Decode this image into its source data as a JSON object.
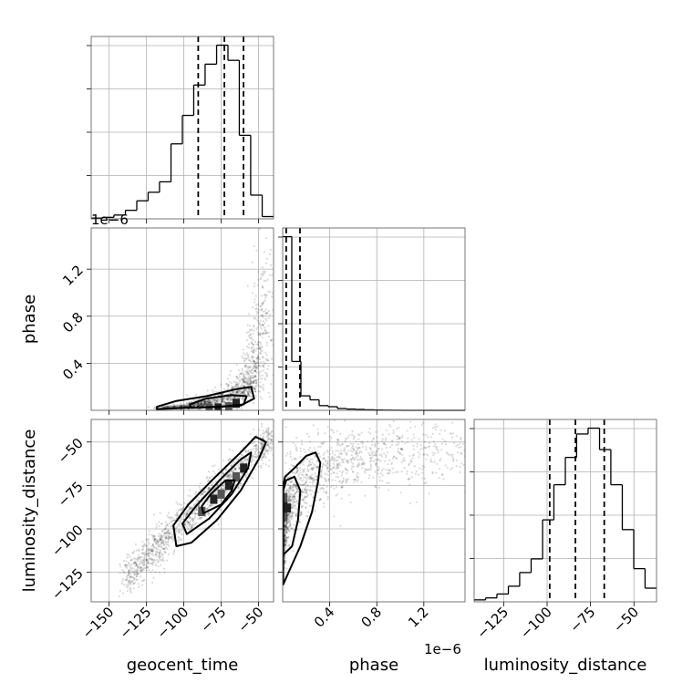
{
  "chart_data": {
    "type": "corner",
    "parameters": [
      "geocent_time",
      "phase",
      "luminosity_distance"
    ],
    "grid": true,
    "axes": {
      "geocent_time": {
        "label": "geocent_time",
        "lim": [
          -162,
          -40
        ],
        "ticks": [
          -150,
          -125,
          -100,
          -75,
          -50
        ],
        "tick_labels": [
          "−150",
          "−125",
          "−100",
          "−75",
          "−50"
        ]
      },
      "phase": {
        "label": "phase",
        "lim": [
          0,
          1.55
        ],
        "ticks": [
          0.4,
          0.8,
          1.2
        ],
        "tick_labels": [
          "0.4",
          "0.8",
          "1.2"
        ],
        "offset_label": "1e−6"
      },
      "luminosity_distance": {
        "label": "luminosity_distance",
        "lim": [
          -142,
          -37
        ],
        "ticks": [
          -125,
          -100,
          -75,
          -50
        ],
        "tick_labels": [
          "−125",
          "−100",
          "−75",
          "−50"
        ]
      }
    },
    "marginals": [
      {
        "parameter": "geocent_time",
        "bin_edges": [
          -162,
          -154.4,
          -146.8,
          -139.1,
          -131.5,
          -123.9,
          -116.3,
          -108.6,
          -101,
          -93.4,
          -85.8,
          -78.1,
          -70.5,
          -62.9,
          -55.3,
          -47.6,
          -40
        ],
        "counts": [
          0.004,
          0.008,
          0.02,
          0.045,
          0.095,
          0.14,
          0.195,
          0.395,
          0.545,
          0.705,
          0.815,
          0.915,
          0.835,
          0.44,
          0.125,
          0.012
        ],
        "quantiles": [
          -90.4,
          -72.9,
          -60.1
        ]
      },
      {
        "parameter": "phase",
        "bin_edges": [
          0,
          0.0775,
          0.155,
          0.2325,
          0.31,
          0.3875,
          0.465,
          0.5425,
          0.62,
          0.6975,
          0.775,
          0.8525,
          0.93,
          1.0075,
          1.085,
          1.1625,
          1.24,
          1.3175,
          1.395,
          1.4725,
          1.55
        ],
        "counts": [
          0.96,
          0.27,
          0.08,
          0.058,
          0.026,
          0.02,
          0.01,
          0.007,
          0.005,
          0.003,
          0.002,
          0.001,
          0.0005,
          0,
          0,
          0,
          0,
          0,
          0,
          0
        ],
        "quantiles": [
          0.03,
          0.147
        ]
      },
      {
        "parameter": "luminosity_distance",
        "bin_edges": [
          -142,
          -135.4,
          -128.9,
          -122.3,
          -115.8,
          -109.2,
          -102.6,
          -96.1,
          -89.5,
          -83,
          -76.4,
          -69.8,
          -63.3,
          -56.7,
          -50.1,
          -43.6,
          -37
        ],
        "counts": [
          0.01,
          0.02,
          0.04,
          0.08,
          0.15,
          0.22,
          0.42,
          0.6,
          0.74,
          0.86,
          0.89,
          0.78,
          0.6,
          0.37,
          0.17,
          0.07
        ],
        "quantiles": [
          -98.5,
          -83.7,
          -67.1
        ]
      }
    ],
    "joint": [
      {
        "x": "geocent_time",
        "y": "phase",
        "ridge_x": [
          -115,
          -100,
          -90,
          -80,
          -70,
          -60,
          -55,
          -50,
          -45
        ],
        "ridge_y": [
          0.02,
          0.03,
          0.05,
          0.08,
          0.12,
          0.18,
          0.3,
          0.55,
          1.0
        ],
        "spread_x": 4,
        "spread_y_rel": 0.35,
        "contours": [
          [
            [
              -118,
              0.01
            ],
            [
              -100,
              0.02
            ],
            [
              -80,
              0.03
            ],
            [
              -62,
              0.04
            ],
            [
              -53,
              0.1
            ],
            [
              -55,
              0.2
            ],
            [
              -65,
              0.18
            ],
            [
              -85,
              0.12
            ],
            [
              -105,
              0.08
            ],
            [
              -118,
              0.03
            ]
          ],
          [
            [
              -95,
              0.02
            ],
            [
              -75,
              0.03
            ],
            [
              -60,
              0.05
            ],
            [
              -58,
              0.12
            ],
            [
              -68,
              0.13
            ],
            [
              -85,
              0.1
            ],
            [
              -96,
              0.05
            ]
          ]
        ],
        "dense_cells": [
          [
            -83,
            0.02
          ],
          [
            -77,
            0.02
          ],
          [
            -70,
            0.03
          ],
          [
            -65,
            0.06
          ]
        ]
      },
      {
        "x": "geocent_time",
        "y": "luminosity_distance",
        "ridge_x": [
          -140,
          -130,
          -120,
          -110,
          -100,
          -90,
          -80,
          -70,
          -60,
          -50,
          -42
        ],
        "ridge_y": [
          -130,
          -121,
          -112,
          -103,
          -95,
          -87,
          -79,
          -71,
          -63,
          -55,
          -48
        ],
        "spread_x": 3,
        "spread_y": 5,
        "contours": [
          [
            [
              -105,
              -110
            ],
            [
              -95,
              -108
            ],
            [
              -78,
              -95
            ],
            [
              -62,
              -78
            ],
            [
              -50,
              -60
            ],
            [
              -45,
              -50
            ],
            [
              -52,
              -47
            ],
            [
              -62,
              -56
            ],
            [
              -80,
              -71
            ],
            [
              -97,
              -86
            ],
            [
              -107,
              -98
            ]
          ],
          [
            [
              -98,
              -103
            ],
            [
              -83,
              -94
            ],
            [
              -68,
              -80
            ],
            [
              -57,
              -65
            ],
            [
              -55,
              -56
            ],
            [
              -62,
              -60
            ],
            [
              -75,
              -71
            ],
            [
              -92,
              -87
            ],
            [
              -101,
              -97
            ]
          ],
          [
            [
              -87,
              -91
            ],
            [
              -75,
              -86
            ],
            [
              -68,
              -78
            ],
            [
              -66,
              -72
            ],
            [
              -72,
              -72
            ],
            [
              -82,
              -80
            ],
            [
              -88,
              -87
            ]
          ]
        ],
        "dense_cells": [
          [
            -88,
            -90
          ],
          [
            -80,
            -83
          ],
          [
            -75,
            -80
          ],
          [
            -70,
            -75
          ],
          [
            -65,
            -70
          ],
          [
            -60,
            -65
          ]
        ]
      },
      {
        "x": "phase",
        "y": "luminosity_distance",
        "ridge_x": [
          0.005,
          0.02,
          0.05,
          0.1,
          0.2,
          0.35,
          0.5,
          0.7,
          0.9,
          1.1,
          1.3
        ],
        "ridge_y": [
          -115,
          -100,
          -90,
          -82,
          -72,
          -66,
          -62,
          -60,
          -57,
          -55,
          -53
        ],
        "spread_x_rel": 0.4,
        "spread_y": 9,
        "contours": [
          [
            [
              0.005,
              -132
            ],
            [
              0.05,
              -125
            ],
            [
              0.15,
              -110
            ],
            [
              0.25,
              -90
            ],
            [
              0.3,
              -73
            ],
            [
              0.32,
              -62
            ],
            [
              0.28,
              -56
            ],
            [
              0.2,
              -58
            ],
            [
              0.1,
              -65
            ],
            [
              0.02,
              -70
            ],
            [
              0.005,
              -75
            ]
          ],
          [
            [
              0.005,
              -115
            ],
            [
              0.08,
              -110
            ],
            [
              0.13,
              -95
            ],
            [
              0.15,
              -78
            ],
            [
              0.1,
              -70
            ],
            [
              0.03,
              -72
            ],
            [
              0.005,
              -78
            ]
          ]
        ],
        "dense_cells": [
          [
            0.01,
            -93
          ],
          [
            0.01,
            -87
          ],
          [
            0.01,
            -82
          ],
          [
            0.04,
            -88
          ]
        ]
      }
    ]
  }
}
